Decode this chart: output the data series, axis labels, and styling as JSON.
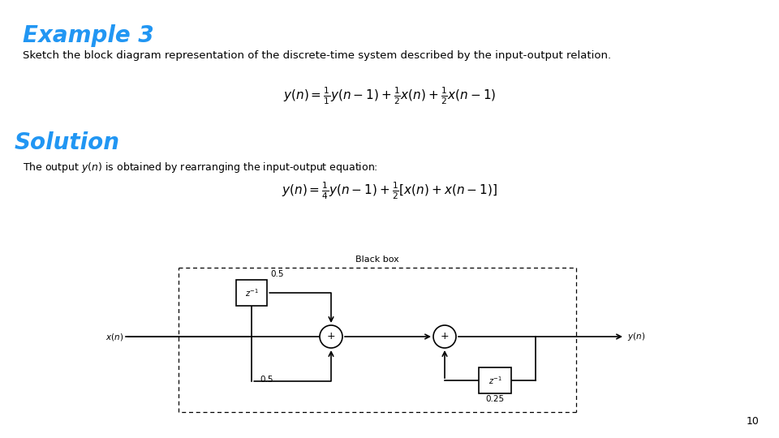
{
  "title": "Example 3",
  "title_color": "#2196F3",
  "title_fontsize": 20,
  "subtitle": "Sketch the block diagram representation of the discrete-time system described by the input-output relation.",
  "subtitle_fontsize": 9.5,
  "solution_label": "Solution",
  "solution_color": "#2196F3",
  "solution_fontsize": 20,
  "solution_text": "The output $y(n)$ is obtained by rearranging the input-output equation:",
  "solution_text_fontsize": 9,
  "black_box_label": "Black box",
  "page_number": "10",
  "bg_color": "#ffffff",
  "diagram_font": 7.5,
  "eq1_fontsize": 11,
  "eq2_fontsize": 11
}
